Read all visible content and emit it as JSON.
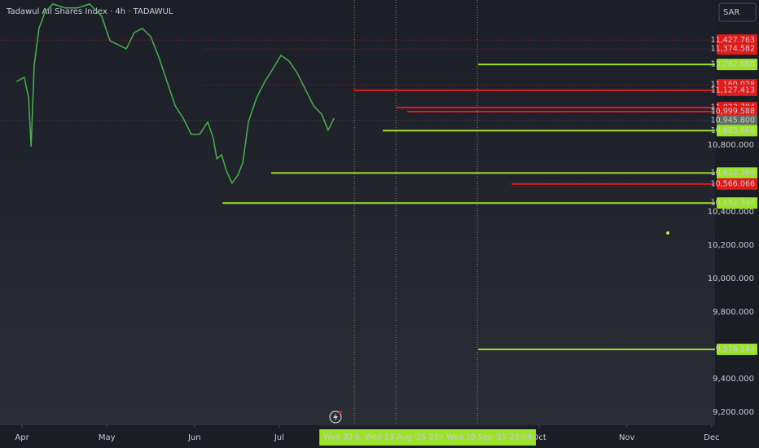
{
  "chart_data": {
    "type": "line",
    "title": "Tadawul All Shares Index · 4h · TADAWUL",
    "currency": "SAR",
    "color": "#4caf50",
    "x": [
      89.0,
      91.8,
      93.3,
      94.2,
      95.3,
      97.0,
      99.1,
      101.9,
      106.3,
      110.6,
      114.9,
      119.2,
      122.1,
      125.0,
      127.9,
      130.7,
      133.6,
      136.5,
      139.4,
      142.3,
      145.2,
      148.0,
      150.9,
      153.8,
      156.7,
      158.7,
      159.9,
      161.6,
      163.3,
      165.3,
      167.4,
      169.1,
      171.1,
      174.0,
      176.9,
      179.7,
      182.6,
      185.5,
      188.4,
      191.3,
      194.2,
      197.0,
      199.3,
      201.4
    ],
    "values": [
      11180,
      11205,
      11083,
      10790,
      11278,
      11498,
      11595,
      11644,
      11620,
      11620,
      11644,
      11571,
      11424,
      11400,
      11376,
      11473,
      11498,
      11449,
      11327,
      11180,
      11034,
      10961,
      10863,
      10863,
      10937,
      10839,
      10717,
      10741,
      10644,
      10571,
      10620,
      10693,
      10937,
      11083,
      11180,
      11254,
      11337,
      11302,
      11229,
      11132,
      11034,
      10985,
      10888,
      10961
    ],
    "xlim": [
      83.2,
      336.2
    ],
    "ylim": [
      9122,
      11668
    ],
    "xticks": [
      {
        "value": 91,
        "label": "Apr"
      },
      {
        "value": 121,
        "label": "May"
      },
      {
        "value": 152,
        "label": "Jun"
      },
      {
        "value": 182,
        "label": "Jul"
      },
      {
        "value": 274,
        "label": "Oct"
      },
      {
        "value": 305,
        "label": "Nov"
      },
      {
        "value": 335,
        "label": "Dec"
      }
    ],
    "yticks": [
      {
        "value": 9200,
        "label": "9,200.000"
      },
      {
        "value": 9400,
        "label": "9,400.000"
      },
      {
        "value": 9800,
        "label": "9,800.000"
      },
      {
        "value": 10000,
        "label": "10,000.000"
      },
      {
        "value": 10200,
        "label": "10,200.000"
      },
      {
        "value": 10400,
        "label": "10,400.000"
      },
      {
        "value": 10800,
        "label": "10,800.000"
      }
    ],
    "date_markers": [
      {
        "value": 208.6,
        "label": "Wed 30 Jul '25"
      },
      {
        "value": 223.3,
        "label": "Wed 13 Aug '25 23:00"
      },
      {
        "value": 252.1,
        "label": "Wed 10 Sep '25 23:00"
      }
    ],
    "levels": [
      {
        "value": 11427.763,
        "label": "11,427.763",
        "color": "#e01b1b",
        "style": "dotted"
      },
      {
        "value": 11374.582,
        "label": "11,374.582",
        "color": "#e01b1b",
        "style": "dotted",
        "x_start": 155.3
      },
      {
        "value": 11282.088,
        "label": "11,282.088",
        "color": "#9be22d",
        "style": "solid",
        "x_start": 252.4
      },
      {
        "value": 11160.028,
        "label": "11,160.028",
        "color": "#e01b1b",
        "style": "dotted",
        "x_start": 155.3
      },
      {
        "value": 11127.413,
        "label": "11,127.413",
        "color": "#e01b1b",
        "style": "solid",
        "x_start": 208.3
      },
      {
        "value": 11023.784,
        "label": "11,023.784",
        "color": "#e01b1b",
        "style": "solid",
        "x_start": 223.3
      },
      {
        "value": 10999.588,
        "label": "10,999.588",
        "color": "#e01b1b",
        "style": "solid",
        "x_start": 227.3
      },
      {
        "value": 10945.8,
        "label": "10,945.800",
        "color": "#5f6e5c",
        "style": "dotted"
      },
      {
        "value": 10885.866,
        "label": "10,885.866",
        "color": "#9be22d",
        "style": "solid",
        "x_start": 218.6
      },
      {
        "value": 10632.369,
        "label": "10,632.369",
        "color": "#9be22d",
        "style": "solid",
        "x_start": 179.2
      },
      {
        "value": 10566.066,
        "label": "10,566.066",
        "color": "#e01b1b",
        "style": "solid",
        "x_start": 264.2
      },
      {
        "value": 10452.344,
        "label": "10,452.344",
        "color": "#9be22d",
        "style": "solid",
        "x_start": 161.9
      },
      {
        "value": 9576.143,
        "label": "9,576.143",
        "color": "#9be22d",
        "style": "solid",
        "x_start": 252.4
      }
    ],
    "point": {
      "x": 319.5,
      "y": 10273,
      "color": "#d4e157"
    }
  }
}
